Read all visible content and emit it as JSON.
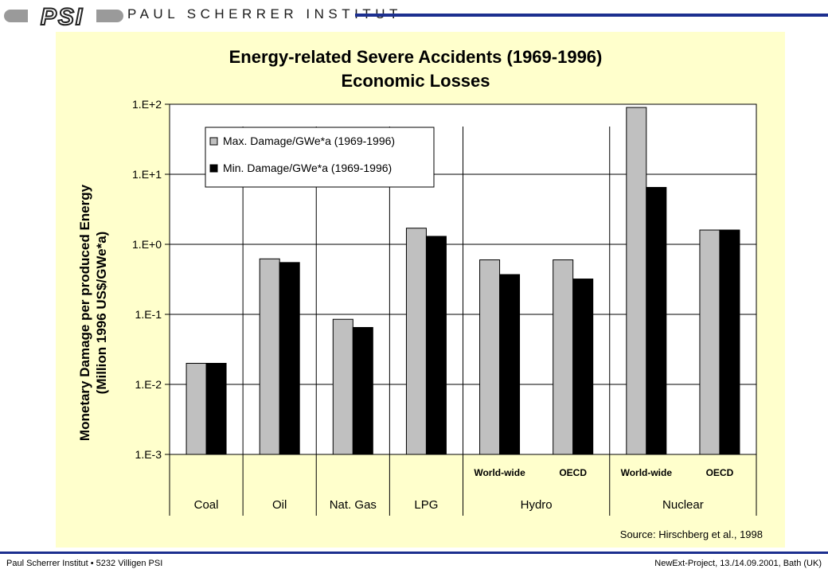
{
  "header": {
    "logo_text": "PSI",
    "org_name": "PAUL SCHERRER INSTITUT"
  },
  "footer": {
    "left": "Paul Scherrer Institut • 5232 Villigen PSI",
    "right": "NewExt-Project, 13./14.09.2001, Bath (UK)"
  },
  "colors": {
    "brand_blue": "#1c2f8f",
    "panel_bg": "#ffffcc",
    "max_bar": "#c0c0c0",
    "min_bar": "#000000"
  },
  "chart_data": {
    "type": "bar",
    "title": "Energy-related Severe Accidents (1969-1996)",
    "subtitle": "Economic Losses",
    "ylabel_line1": "Monetary Damage per produced Energy",
    "ylabel_line2": "(Million 1996  US$/GWe*a)",
    "yscale": "log",
    "ylim": [
      0.001,
      100
    ],
    "ytick_values": [
      0.001,
      0.01,
      0.1,
      1,
      10,
      100
    ],
    "ytick_labels": [
      "1.E-3",
      "1.E-2",
      "1.E-1",
      "1.E+0",
      "1.E+1",
      "1.E+2"
    ],
    "grid": true,
    "legend_position": "top-left",
    "categories": [
      "Coal",
      "Oil",
      "Nat. Gas",
      "LPG",
      "World-wide",
      "OECD",
      "World-wide",
      "OECD"
    ],
    "groups": [
      {
        "label": "Coal",
        "count": 1
      },
      {
        "label": "Oil",
        "count": 1
      },
      {
        "label": "Nat. Gas",
        "count": 1
      },
      {
        "label": "LPG",
        "count": 1
      },
      {
        "label": "Hydro",
        "count": 2
      },
      {
        "label": "Nuclear",
        "count": 2
      }
    ],
    "series": [
      {
        "name": "Max. Damage/GWe*a (1969-1996)",
        "color": "#c0c0c0",
        "values": [
          0.02,
          0.62,
          0.085,
          1.7,
          0.6,
          0.6,
          90,
          1.6
        ]
      },
      {
        "name": "Min. Damage/GWe*a (1969-1996)",
        "color": "#000000",
        "values": [
          0.02,
          0.55,
          0.065,
          1.3,
          0.37,
          0.32,
          6.5,
          1.6
        ]
      }
    ],
    "source": "Source: Hirschberg et al., 1998"
  }
}
